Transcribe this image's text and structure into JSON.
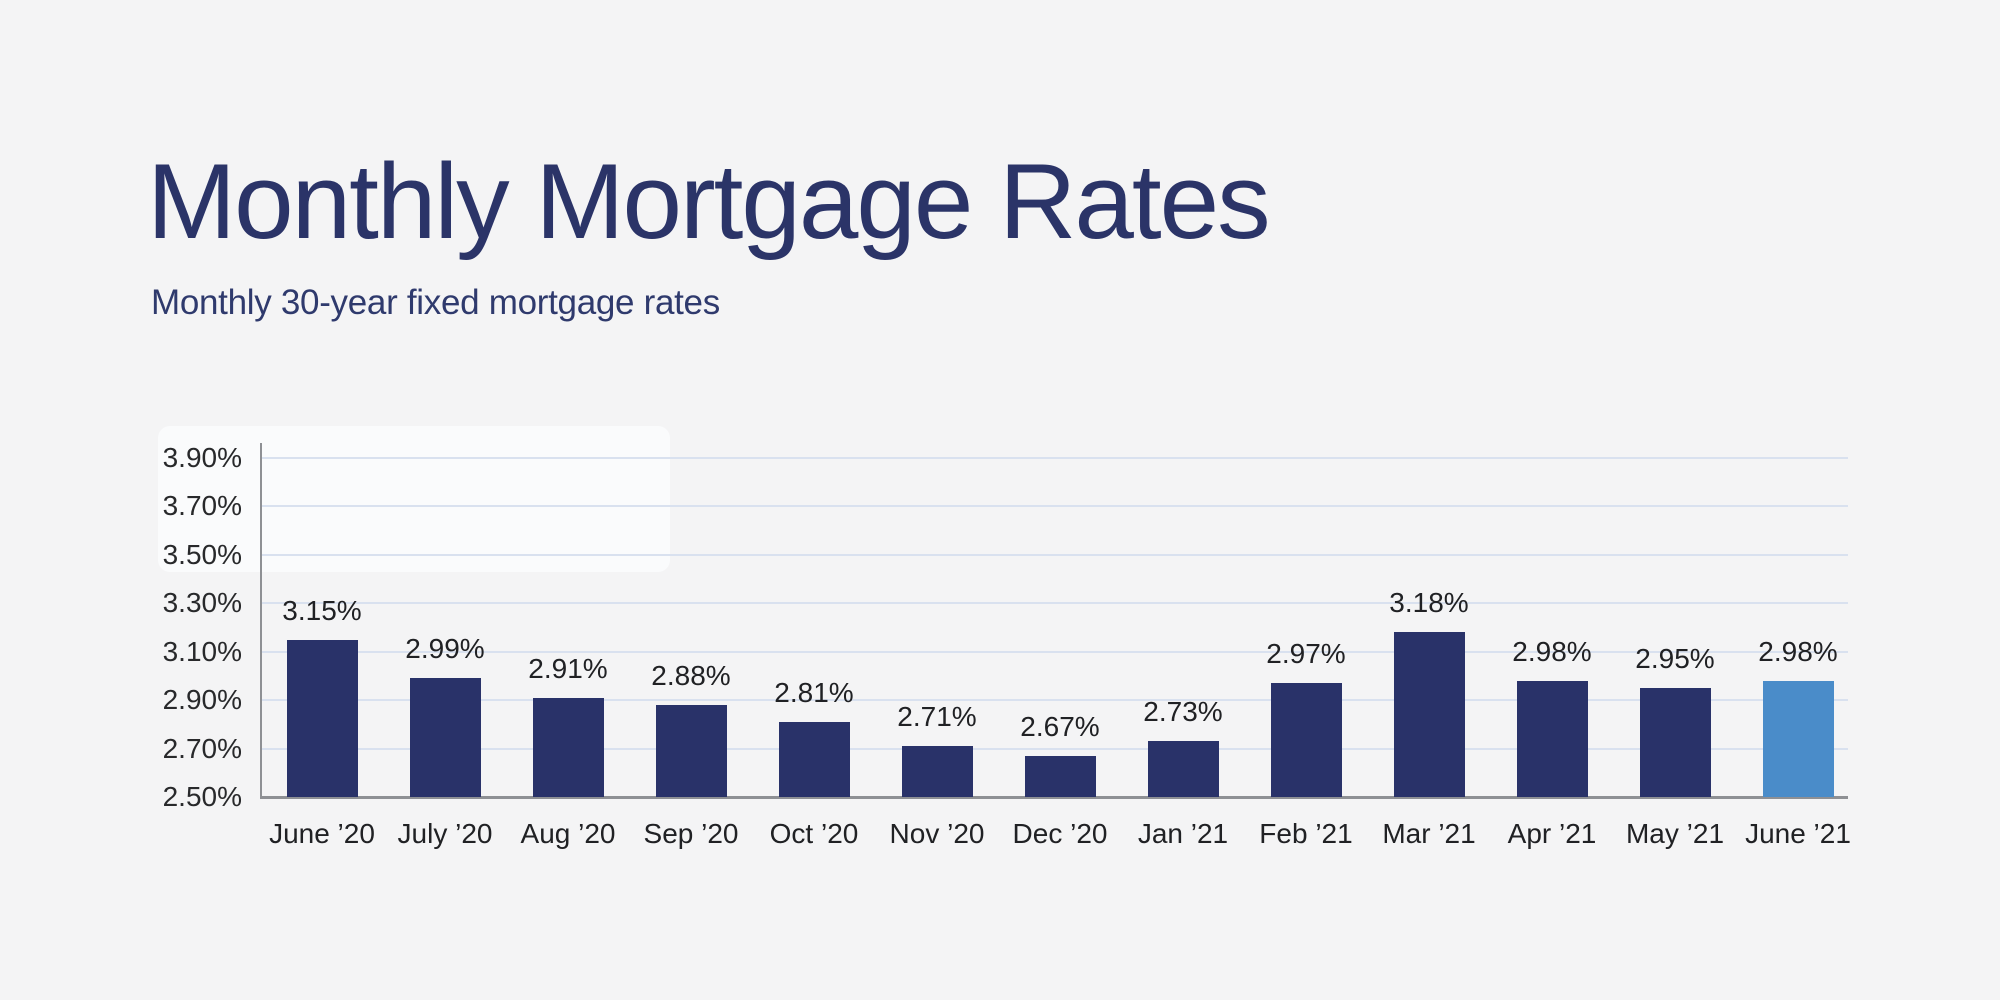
{
  "page": {
    "background_color": "#f4f4f5"
  },
  "header": {
    "title": "Monthly Mortgage Rates",
    "subtitle": "Monthly 30-year fixed mortgage rates",
    "title_color": "#2b3468",
    "subtitle_color": "#2f3a6d"
  },
  "chart_data": {
    "type": "bar",
    "title": "Monthly Mortgage Rates",
    "subtitle": "Monthly 30-year fixed mortgage rates",
    "categories": [
      "June ’20",
      "July ’20",
      "Aug ’20",
      "Sep ’20",
      "Oct ’20",
      "Nov ’20",
      "Dec ’20",
      "Jan ’21",
      "Feb ’21",
      "Mar ’21",
      "Apr ’21",
      "May ’21",
      "June ’21"
    ],
    "values": [
      3.15,
      2.99,
      2.91,
      2.88,
      2.81,
      2.71,
      2.67,
      2.73,
      2.97,
      3.18,
      2.98,
      2.95,
      2.98
    ],
    "value_labels": [
      "3.15%",
      "2.99%",
      "2.91%",
      "2.88%",
      "2.81%",
      "2.71%",
      "2.67%",
      "2.73%",
      "2.97%",
      "3.18%",
      "2.98%",
      "2.95%",
      "2.98%"
    ],
    "highlight_index": 12,
    "bar_color": "#293269",
    "highlight_bar_color": "#4a8cc9",
    "value_label_color": "#202124",
    "x_tick_label_color": "#202124",
    "legend": "none",
    "grid": true,
    "y_axis": {
      "min": 2.5,
      "max": 3.9,
      "tick_step": 0.2,
      "ticks": [
        3.9,
        3.7,
        3.5,
        3.3,
        3.1,
        2.9,
        2.7,
        2.5
      ],
      "tick_labels": [
        "3.90%",
        "3.70%",
        "3.50%",
        "3.30%",
        "3.10%",
        "2.90%",
        "2.70%",
        "2.50%"
      ],
      "tick_label_color": "#28292b",
      "gridline_color": "#d9e1ef",
      "axis_line_color": "#8e9094"
    }
  }
}
